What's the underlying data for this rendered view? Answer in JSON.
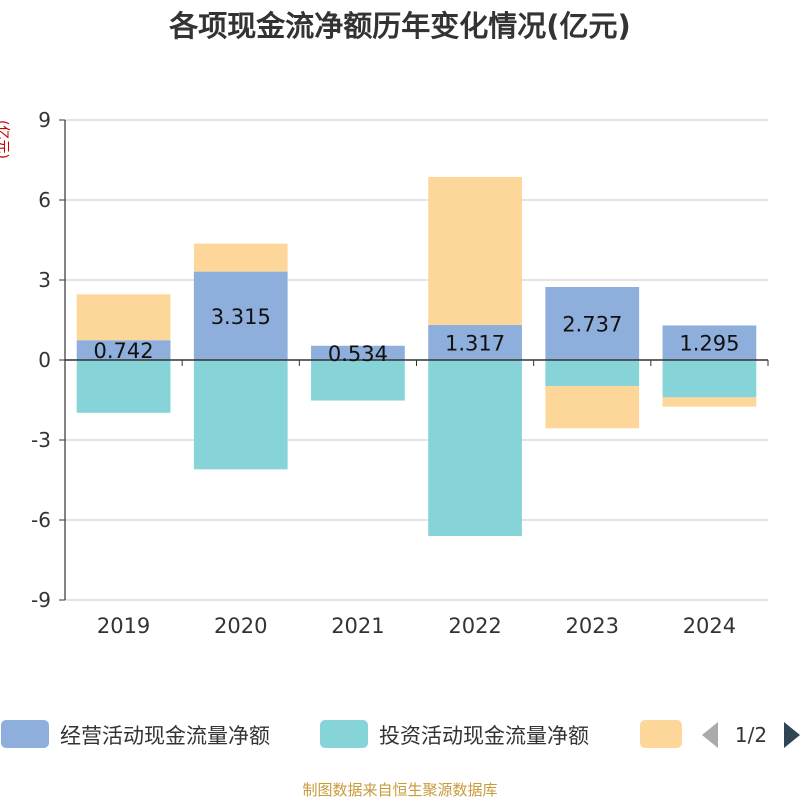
{
  "chart_data": {
    "type": "bar",
    "stacked": true,
    "title": "各项现金流净额历年变化情况(亿元)",
    "ylabel": "(亿元)",
    "categories": [
      "2019",
      "2020",
      "2021",
      "2022",
      "2023",
      "2024"
    ],
    "ylim": [
      -9,
      9
    ],
    "yticks": [
      -9,
      -6,
      -3,
      0,
      3,
      6,
      9
    ],
    "grid": true,
    "series": [
      {
        "name": "经营活动现金流量净额",
        "color": "#8eaedb",
        "values": [
          0.742,
          3.315,
          0.534,
          1.317,
          2.737,
          1.295
        ],
        "data_labels": [
          "0.742",
          "3.315",
          "0.534",
          "1.317",
          "2.737",
          "1.295"
        ]
      },
      {
        "name": "投资活动现金流量净额",
        "color": "#86d4d8",
        "values": [
          -1.98,
          -4.1,
          -1.52,
          -6.6,
          -0.98,
          -1.4
        ]
      },
      {
        "name": "",
        "color": "#fdd799",
        "values": [
          1.72,
          1.05,
          0.0,
          5.55,
          -1.58,
          -0.35
        ]
      }
    ],
    "legend": {
      "placement": "bottom",
      "page": "1/2"
    }
  },
  "source": "制图数据来自恒生聚源数据库"
}
